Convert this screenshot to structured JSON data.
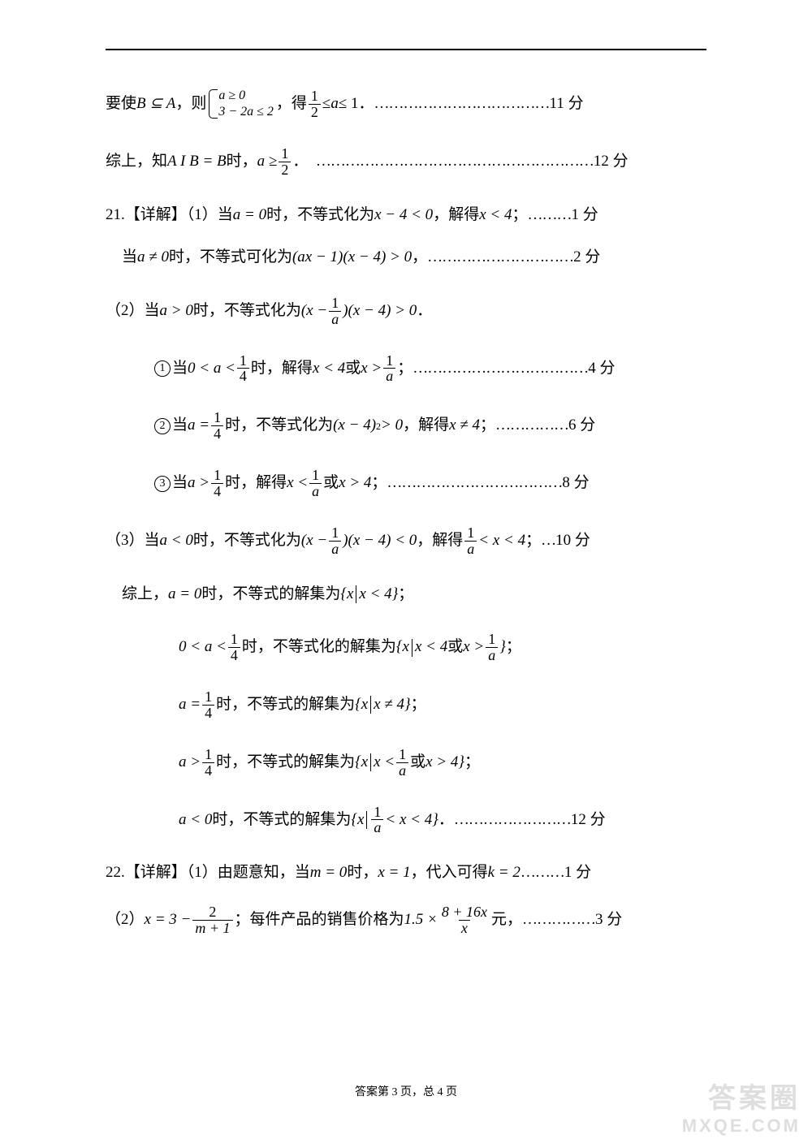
{
  "colors": {
    "text": "#000000",
    "background": "#ffffff",
    "watermark": "#777777"
  },
  "typography": {
    "body_fontsize_pt": 14,
    "footer_fontsize_pt": 10,
    "frac_fontsize_pt": 13
  },
  "lines": {
    "l1a": "要使",
    "l1b": "，则",
    "l1_cond1": "a ≥ 0",
    "l1_cond2": "3 − 2a ≤ 2",
    "l1c": "，得",
    "l1d": "≤",
    "l1e": "≤ 1．",
    "l1_dots": "………………………………",
    "l1_pts": "11 分",
    "l2a": "综上，知",
    "l2b": "时，",
    "l2c": "．",
    "l2_dots": "…………………………………………………",
    "l2_pts": "12 分",
    "l3a": "21.【详解】（1）当",
    "l3_eq1": "a = 0",
    "l3b": "时，不等式化为",
    "l3_eq2": "x − 4 < 0",
    "l3c": "，解得",
    "l3_eq3": "x < 4",
    "l3d": "；",
    "l3_dots": "………",
    "l3_pts": "1 分",
    "l4a": "当",
    "l4_eq1": "a ≠ 0",
    "l4b": "时，不等式可化为",
    "l4_eq2": "(ax − 1)(x − 4) > 0",
    "l4c": "，",
    "l4_dots": "…………………………",
    "l4_pts": "2 分",
    "l5a": "（2）当",
    "l5_eq1": "a > 0",
    "l5b": "时，不等式化为",
    "l5c": "．",
    "l6a": "当",
    "l6b": "时，解得",
    "l6c": "或",
    "l6d": "；",
    "l6_dots": "………………………………",
    "l6_pts": "4 分",
    "l7a": "当",
    "l7b": "时，不等式化为",
    "l7c": "，解得",
    "l7d": "；",
    "l7_dots": "……………",
    "l7_pts": "6 分",
    "l8a": "当",
    "l8b": "时，解得",
    "l8c": "或",
    "l8d": "；",
    "l8_dots": "………………………………",
    "l8_pts": "8 分",
    "l9a": "（3）当",
    "l9_eq1": "a < 0",
    "l9b": "时，不等式化为",
    "l9c": "，解得",
    "l9d": "；",
    "l9_dots": "…",
    "l9_pts": "10 分",
    "l10a": "综上，",
    "l10_eq": "a = 0",
    "l10b": "时，不等式的解集为",
    "l10c": "；",
    "l11a": "时，不等式化的解集为",
    "l11b": "或",
    "l11c": "；",
    "l12a": "时，不等式的解集为",
    "l12b": "；",
    "l13a": "时，不等式的解集为",
    "l13b": "或",
    "l13c": "；",
    "l14a": "时，不等式的解集为",
    "l14b": "．",
    "l14_dots": "……………………",
    "l14_pts": "12 分",
    "l15a": "22.【详解】（1）由题意知，当",
    "l15_eq1": "m = 0",
    "l15b": "时，",
    "l15_eq2": "x = 1",
    "l15c": "，代入可得",
    "l15_eq3": "k = 2",
    "l15_dots": "………",
    "l15_pts": "1 分",
    "l16a": "（2）",
    "l16b": "；每件产品的销售价格为",
    "l16c": "元，",
    "l16_dots": "……………",
    "l16_pts": "3 分"
  },
  "math": {
    "BsubA": "B ⊆ A",
    "AIB": "A I  B = B",
    "a_ge_half_lhs": "a ≥",
    "half_num": "1",
    "half_den": "2",
    "a": "a",
    "x": "x",
    "quarter_num": "1",
    "quarter_den": "4",
    "one_over_a_num": "1",
    "one_over_a_den": "a",
    "zero_lt_a_lt": "0 < a <",
    "x_lt_4": "x < 4",
    "x_gt": "x >",
    "a_eq": "a =",
    "xm4sq": "(x − 4)",
    "sq": "2",
    "gt0": " > 0",
    "x_ne_4": "x ≠ 4",
    "a_gt": "a >",
    "x_lt": "x <",
    "x_gt_4": "x > 4",
    "prod_open": "(x −",
    "prod_close": ")(x − 4) > 0",
    "prod_close_lt": ")(x − 4) < 0",
    "lt_x_lt_4": " < x < 4",
    "a_lt_0": "a < 0",
    "set_open": "{x",
    "set_close": "}",
    "x_eq_3_minus": "x = 3 −",
    "two_num": "2",
    "mplus1_den": "m + 1",
    "onepoint5": "1.5 ×",
    "top_8_16x": "8 + 16x",
    "den_x": "x"
  },
  "footer": "答案第 3 页，总 4 页",
  "watermark": {
    "cn": "答案圈",
    "en": "MXQE.COM"
  }
}
